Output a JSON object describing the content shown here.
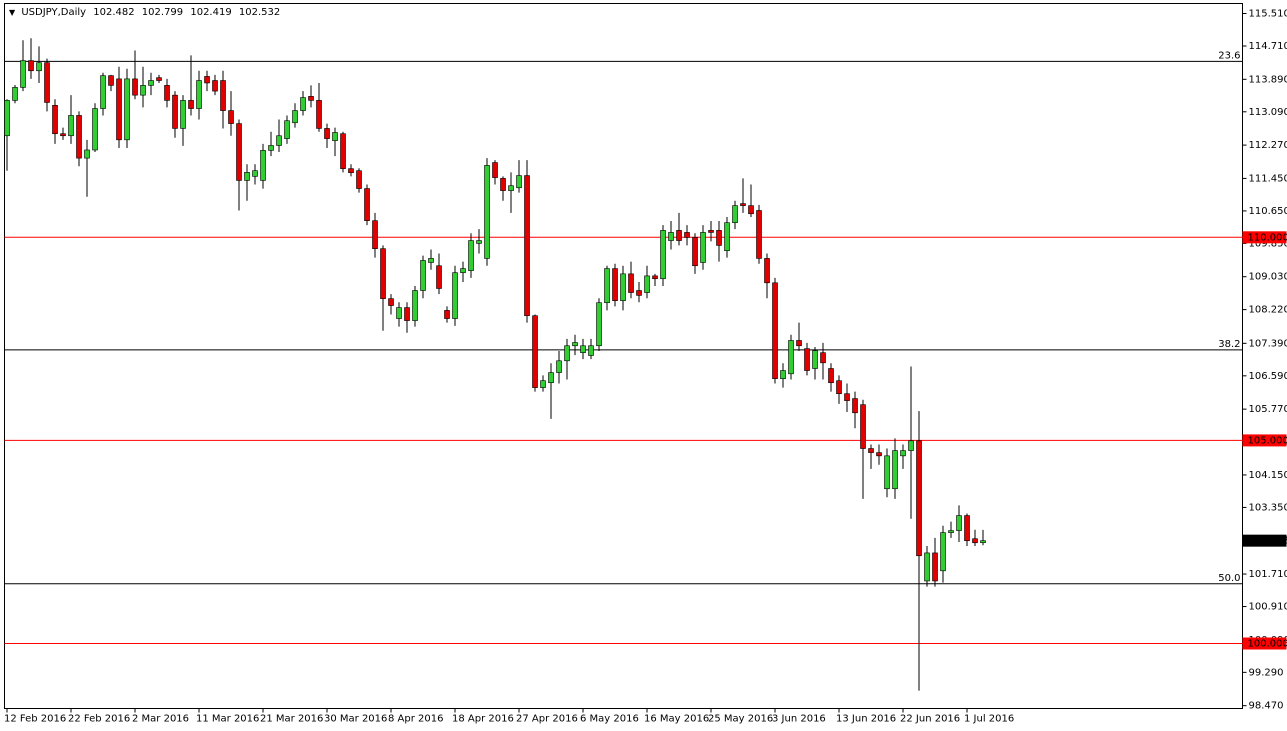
{
  "chart_data": {
    "type": "candlestick",
    "title": "USDJPY,Daily",
    "up_color": "#32cd32",
    "down_color": "#e00000",
    "categories": [
      "12 Feb 2016",
      null,
      null,
      null,
      null,
      null,
      null,
      null,
      "22 Feb 2016",
      null,
      null,
      null,
      null,
      null,
      null,
      null,
      "2 Mar 2016",
      null,
      null,
      null,
      null,
      null,
      null,
      null,
      "11 Mar 2016",
      null,
      null,
      null,
      null,
      null,
      null,
      null,
      "21 Mar 2016",
      null,
      null,
      null,
      null,
      null,
      null,
      null,
      "30 Mar 2016",
      null,
      null,
      null,
      null,
      null,
      null,
      null,
      "8 Apr 2016",
      null,
      null,
      null,
      null,
      null,
      null,
      null,
      "18 Apr 2016",
      null,
      null,
      null,
      null,
      null,
      null,
      null,
      "27 Apr 2016",
      null,
      null,
      null,
      null,
      null,
      null,
      null,
      "6 May 2016",
      null,
      null,
      null,
      null,
      null,
      null,
      null,
      "16 May 2016",
      null,
      null,
      null,
      null,
      null,
      null,
      null,
      "25 May 2016",
      null,
      null,
      null,
      null,
      null,
      null,
      null,
      "3 Jun 2016",
      null,
      null,
      null,
      null,
      null,
      null,
      null,
      "13 Jun 2016",
      null,
      null,
      null,
      null,
      null,
      null,
      null,
      "22 Jun 2016",
      null,
      null,
      null,
      null,
      null,
      null,
      null,
      "1 Jul 2016",
      null,
      null
    ],
    "open": [
      112.5,
      113.37,
      113.69,
      114.35,
      114.1,
      114.3,
      113.25,
      112.55,
      112.5,
      113.0,
      111.95,
      112.15,
      113.17,
      113.98,
      113.9,
      112.4,
      113.9,
      113.5,
      113.74,
      113.93,
      113.74,
      113.5,
      112.68,
      113.37,
      113.17,
      113.96,
      113.86,
      113.86,
      113.12,
      112.8,
      111.4,
      111.5,
      111.4,
      112.14,
      112.26,
      112.43,
      112.82,
      113.12,
      113.47,
      113.37,
      112.68,
      112.38,
      112.55,
      111.69,
      111.64,
      111.2,
      110.41,
      109.72,
      108.49,
      108.0,
      108.27,
      107.95,
      108.69,
      109.38,
      109.3,
      108.2,
      108.0,
      109.13,
      109.18,
      109.85,
      109.48,
      111.84,
      111.45,
      111.15,
      111.22,
      111.52,
      108.07,
      106.3,
      106.42,
      106.67,
      106.96,
      107.33,
      107.16,
      107.09,
      107.33,
      108.39,
      109.23,
      108.44,
      109.1,
      108.69,
      108.64,
      109.05,
      108.98,
      109.92,
      110.17,
      110.12,
      110.0,
      109.38,
      110.17,
      110.17,
      109.67,
      110.36,
      110.83,
      110.78,
      110.66,
      109.48,
      108.88,
      106.52,
      106.64,
      107.46,
      107.26,
      106.77,
      107.16,
      106.77,
      106.47,
      106.15,
      106.03,
      105.88,
      104.8,
      104.7,
      103.81,
      103.81,
      104.62,
      104.75,
      104.99,
      101.54,
      102.23,
      101.79,
      102.73,
      102.78,
      103.15,
      102.58,
      102.482
    ],
    "high": [
      113.4,
      113.75,
      114.85,
      114.9,
      114.7,
      114.4,
      113.4,
      112.7,
      113.5,
      113.1,
      112.4,
      113.3,
      114.05,
      114.0,
      114.2,
      114.15,
      114.6,
      114.2,
      114.05,
      114.0,
      113.9,
      113.6,
      113.5,
      114.48,
      114.1,
      114.1,
      114.0,
      114.1,
      113.6,
      112.9,
      111.8,
      111.8,
      112.3,
      112.6,
      112.9,
      113.0,
      113.3,
      113.6,
      113.74,
      113.8,
      112.8,
      112.7,
      112.6,
      111.8,
      111.7,
      111.3,
      110.6,
      109.8,
      108.6,
      108.4,
      108.4,
      108.8,
      109.55,
      109.7,
      109.6,
      108.3,
      109.3,
      109.4,
      110.1,
      110.2,
      111.95,
      111.9,
      111.5,
      111.6,
      111.9,
      111.9,
      108.1,
      106.6,
      106.9,
      107.2,
      107.5,
      107.6,
      107.5,
      107.5,
      108.5,
      109.3,
      109.35,
      109.3,
      109.4,
      108.9,
      109.3,
      109.1,
      110.3,
      110.4,
      110.6,
      110.3,
      110.1,
      110.3,
      110.4,
      110.4,
      110.5,
      110.9,
      111.45,
      111.3,
      110.8,
      109.6,
      109.0,
      106.9,
      107.6,
      107.9,
      107.4,
      107.3,
      107.4,
      106.9,
      106.6,
      106.4,
      106.2,
      106.0,
      104.9,
      104.9,
      104.8,
      105.05,
      104.9,
      106.82,
      105.72,
      102.4,
      102.6,
      102.9,
      103.0,
      103.4,
      103.2,
      102.8,
      102.799
    ],
    "low": [
      111.64,
      113.3,
      113.6,
      113.9,
      113.8,
      113.1,
      112.3,
      112.4,
      112.3,
      111.75,
      111.0,
      112.1,
      113.0,
      113.6,
      112.2,
      112.2,
      113.4,
      113.2,
      113.5,
      113.8,
      113.2,
      112.45,
      112.25,
      113.0,
      112.9,
      113.6,
      113.5,
      112.68,
      112.5,
      110.66,
      110.9,
      111.3,
      111.2,
      112.0,
      112.1,
      112.3,
      112.7,
      113.0,
      113.2,
      112.6,
      112.2,
      112.0,
      111.6,
      111.5,
      111.1,
      110.3,
      109.5,
      107.7,
      108.1,
      107.8,
      107.65,
      107.8,
      108.5,
      109.2,
      108.6,
      107.9,
      107.82,
      108.9,
      109.0,
      109.6,
      109.3,
      111.3,
      110.9,
      110.6,
      111.1,
      107.9,
      106.2,
      106.2,
      105.53,
      106.4,
      106.5,
      107.1,
      107.0,
      107.0,
      107.2,
      108.2,
      108.3,
      108.2,
      108.5,
      108.4,
      108.5,
      108.8,
      108.8,
      109.7,
      109.8,
      109.8,
      109.1,
      109.2,
      109.9,
      109.4,
      109.5,
      110.2,
      110.6,
      110.5,
      109.35,
      108.5,
      106.4,
      106.3,
      106.5,
      107.2,
      106.6,
      106.5,
      106.5,
      106.2,
      105.9,
      105.7,
      105.3,
      103.56,
      104.3,
      104.4,
      103.6,
      103.56,
      104.3,
      103.07,
      98.84,
      101.4,
      101.4,
      101.5,
      102.6,
      102.5,
      102.4,
      102.4,
      102.419
    ],
    "close": [
      113.37,
      113.69,
      114.35,
      114.1,
      114.3,
      113.32,
      112.55,
      112.5,
      113.0,
      111.95,
      112.15,
      113.17,
      113.98,
      113.74,
      112.4,
      113.9,
      113.5,
      113.74,
      113.86,
      113.86,
      113.37,
      112.68,
      113.37,
      113.17,
      113.86,
      113.8,
      113.6,
      113.12,
      112.8,
      111.4,
      111.6,
      111.64,
      112.14,
      112.26,
      112.5,
      112.87,
      113.12,
      113.44,
      113.37,
      112.68,
      112.43,
      112.58,
      111.69,
      111.59,
      111.2,
      110.41,
      109.72,
      108.49,
      108.32,
      108.27,
      107.95,
      108.69,
      109.43,
      109.48,
      108.74,
      108.0,
      109.13,
      109.23,
      109.92,
      109.92,
      111.77,
      111.47,
      111.15,
      111.27,
      111.52,
      108.07,
      106.3,
      106.47,
      106.67,
      106.96,
      107.33,
      107.41,
      107.33,
      107.33,
      108.39,
      109.23,
      108.44,
      109.1,
      108.64,
      108.57,
      109.05,
      108.98,
      110.17,
      110.12,
      109.92,
      110.0,
      109.3,
      110.12,
      110.12,
      109.8,
      110.36,
      110.78,
      110.78,
      110.58,
      109.48,
      108.88,
      106.52,
      106.72,
      107.46,
      107.33,
      106.72,
      107.21,
      106.91,
      106.42,
      106.15,
      105.98,
      105.68,
      104.8,
      104.7,
      104.62,
      104.62,
      104.75,
      104.75,
      104.99,
      102.16,
      102.23,
      101.54,
      102.73,
      102.78,
      103.15,
      102.53,
      102.48,
      102.532
    ],
    "ylim": [
      98.4,
      115.756
    ],
    "yticks": [
      {
        "value": 115.51,
        "label": "115.510"
      },
      {
        "value": 114.71,
        "label": "114.710"
      },
      {
        "value": 113.89,
        "label": "113.890"
      },
      {
        "value": 113.09,
        "label": "113.090"
      },
      {
        "value": 112.27,
        "label": "112.270"
      },
      {
        "value": 111.45,
        "label": "111.450"
      },
      {
        "value": 110.65,
        "label": "110.650"
      },
      {
        "value": 109.85,
        "label": "109.850"
      },
      {
        "value": 109.03,
        "label": "109.030"
      },
      {
        "value": 108.22,
        "label": "108.220"
      },
      {
        "value": 107.39,
        "label": "107.390"
      },
      {
        "value": 106.59,
        "label": "106.590"
      },
      {
        "value": 105.77,
        "label": "105.770"
      },
      {
        "value": 104.97,
        "label": "104.970"
      },
      {
        "value": 104.15,
        "label": "104.150"
      },
      {
        "value": 103.35,
        "label": "103.350"
      },
      {
        "value": 102.53,
        "label": "102.530"
      },
      {
        "value": 101.71,
        "label": "101.710"
      },
      {
        "value": 100.91,
        "label": "100.910"
      },
      {
        "value": 100.09,
        "label": "100.090"
      },
      {
        "value": 99.29,
        "label": "99.290"
      },
      {
        "value": 98.47,
        "label": "98.470"
      }
    ],
    "fib_levels": [
      {
        "value": 114.33,
        "label": "23.6"
      },
      {
        "value": 107.23,
        "label": "38.2"
      },
      {
        "value": 101.47,
        "label": "50.0"
      }
    ],
    "fib_color": "#000000",
    "price_levels": [
      {
        "value": 110,
        "label": "110.000"
      },
      {
        "value": 105,
        "label": "105.000"
      },
      {
        "value": 100,
        "label": "100.000"
      }
    ],
    "price_level_color": "#ff0000"
  }
}
